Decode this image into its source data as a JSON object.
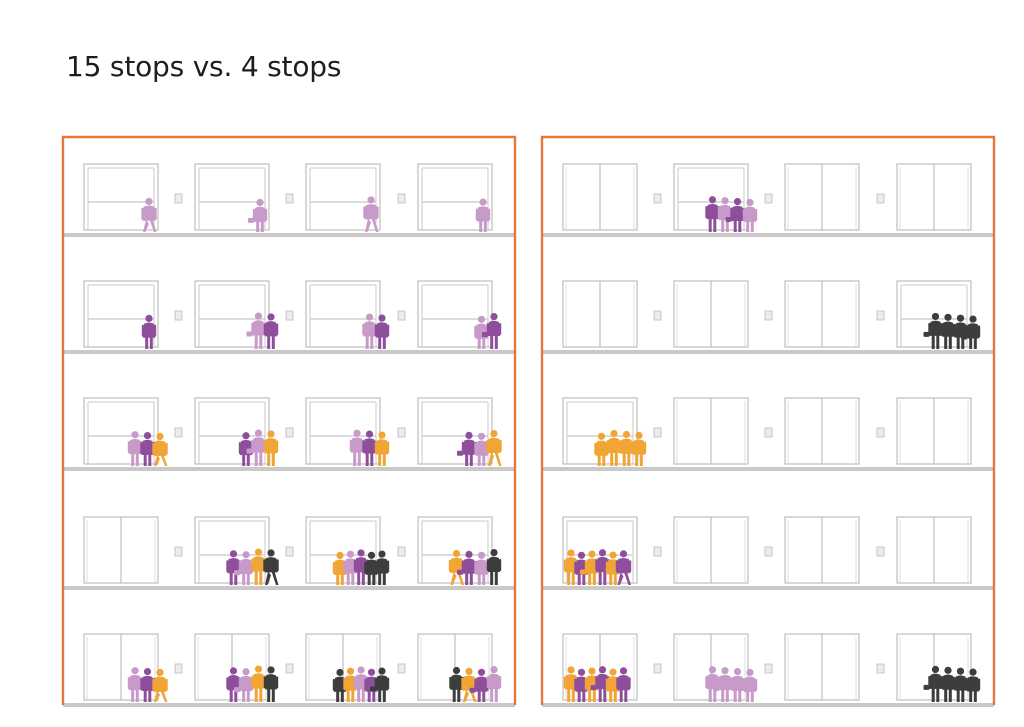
{
  "title": "15 stops vs. 4 stops",
  "colors": {
    "frame": "#e4773a",
    "floor": "#c9c9c9",
    "door": "#bdbdbd",
    "panel": "#c8c8c8",
    "purple_dark": "#8e4e9c",
    "purple_light": "#c89ac9",
    "orange": "#f0a534",
    "gray_dark": "#3d3d3d"
  },
  "buildings": [
    {
      "floors": [
        {
          "elevators": [
            {
              "door_style": "open",
              "people": [
                {
                  "color": "purple_light",
                  "pose": "walk"
                }
              ]
            },
            {
              "door_style": "open",
              "people": [
                {
                  "color": "purple_light",
                  "pose": "bag"
                }
              ]
            },
            {
              "door_style": "open",
              "people": [
                {
                  "color": "purple_light",
                  "pose": "walk"
                }
              ]
            },
            {
              "door_style": "open",
              "people": [
                {
                  "color": "purple_light",
                  "pose": "stand"
                }
              ]
            }
          ]
        },
        {
          "elevators": [
            {
              "door_style": "open",
              "people": [
                {
                  "color": "purple_dark",
                  "pose": "stand"
                }
              ]
            },
            {
              "door_style": "open",
              "people": [
                {
                  "color": "purple_light",
                  "pose": "bag"
                },
                {
                  "color": "purple_dark",
                  "pose": "stand"
                }
              ]
            },
            {
              "door_style": "open",
              "people": [
                {
                  "color": "purple_light",
                  "pose": "stand"
                },
                {
                  "color": "purple_dark",
                  "pose": "stand"
                }
              ]
            },
            {
              "door_style": "open",
              "people": [
                {
                  "color": "purple_light",
                  "pose": "stand"
                },
                {
                  "color": "purple_dark",
                  "pose": "bag"
                }
              ]
            }
          ]
        },
        {
          "elevators": [
            {
              "door_style": "open",
              "people": [
                {
                  "color": "purple_light",
                  "pose": "stand"
                },
                {
                  "color": "purple_dark",
                  "pose": "stand"
                },
                {
                  "color": "orange",
                  "pose": "walk"
                }
              ]
            },
            {
              "door_style": "open",
              "people": [
                {
                  "color": "purple_dark",
                  "pose": "stand"
                },
                {
                  "color": "purple_light",
                  "pose": "bag"
                },
                {
                  "color": "orange",
                  "pose": "stand"
                }
              ]
            },
            {
              "door_style": "open",
              "people": [
                {
                  "color": "purple_light",
                  "pose": "stand"
                },
                {
                  "color": "purple_dark",
                  "pose": "stand"
                },
                {
                  "color": "orange",
                  "pose": "stand"
                }
              ]
            },
            {
              "door_style": "open",
              "people": [
                {
                  "color": "purple_dark",
                  "pose": "bag"
                },
                {
                  "color": "purple_light",
                  "pose": "stand"
                },
                {
                  "color": "orange",
                  "pose": "walk"
                }
              ]
            }
          ]
        },
        {
          "elevators": [
            {
              "door_style": "closed",
              "people": []
            },
            {
              "door_style": "open",
              "people": [
                {
                  "color": "purple_dark",
                  "pose": "stand"
                },
                {
                  "color": "purple_light",
                  "pose": "bag"
                },
                {
                  "color": "orange",
                  "pose": "stand"
                },
                {
                  "color": "gray_dark",
                  "pose": "walk"
                }
              ]
            },
            {
              "door_style": "open",
              "people": [
                {
                  "color": "orange",
                  "pose": "stand"
                },
                {
                  "color": "purple_light",
                  "pose": "stand"
                },
                {
                  "color": "purple_dark",
                  "pose": "stand"
                },
                {
                  "color": "gray_dark",
                  "pose": "stand"
                },
                {
                  "color": "gray_dark",
                  "pose": "bag"
                }
              ]
            },
            {
              "door_style": "open",
              "people": [
                {
                  "color": "orange",
                  "pose": "walk"
                },
                {
                  "color": "purple_dark",
                  "pose": "bag"
                },
                {
                  "color": "purple_light",
                  "pose": "stand"
                },
                {
                  "color": "gray_dark",
                  "pose": "stand"
                }
              ]
            }
          ]
        },
        {
          "elevators": [
            {
              "door_style": "closed",
              "people": [
                {
                  "color": "purple_light",
                  "pose": "stand"
                },
                {
                  "color": "purple_dark",
                  "pose": "stand"
                },
                {
                  "color": "orange",
                  "pose": "walk"
                }
              ]
            },
            {
              "door_style": "closed",
              "people": [
                {
                  "color": "purple_dark",
                  "pose": "stand"
                },
                {
                  "color": "purple_light",
                  "pose": "bag"
                },
                {
                  "color": "orange",
                  "pose": "stand"
                },
                {
                  "color": "gray_dark",
                  "pose": "stand"
                }
              ]
            },
            {
              "door_style": "closed",
              "people": [
                {
                  "color": "gray_dark",
                  "pose": "stand"
                },
                {
                  "color": "orange",
                  "pose": "stand"
                },
                {
                  "color": "purple_light",
                  "pose": "stand"
                },
                {
                  "color": "purple_dark",
                  "pose": "stand"
                },
                {
                  "color": "gray_dark",
                  "pose": "bag"
                }
              ]
            },
            {
              "door_style": "closed",
              "people": [
                {
                  "color": "gray_dark",
                  "pose": "stand"
                },
                {
                  "color": "orange",
                  "pose": "walk"
                },
                {
                  "color": "purple_dark",
                  "pose": "bag"
                },
                {
                  "color": "purple_light",
                  "pose": "stand"
                }
              ]
            }
          ]
        }
      ]
    },
    {
      "floors": [
        {
          "elevators": [
            {
              "door_style": "closed",
              "people": []
            },
            {
              "door_style": "open",
              "people": [
                {
                  "color": "purple_dark",
                  "pose": "stand"
                },
                {
                  "color": "purple_light",
                  "pose": "stand"
                },
                {
                  "color": "purple_dark",
                  "pose": "bag"
                },
                {
                  "color": "purple_light",
                  "pose": "stand"
                }
              ]
            },
            {
              "door_style": "closed",
              "people": []
            },
            {
              "door_style": "closed",
              "people": []
            }
          ]
        },
        {
          "elevators": [
            {
              "door_style": "closed",
              "people": []
            },
            {
              "door_style": "closed",
              "people": []
            },
            {
              "door_style": "closed",
              "people": []
            },
            {
              "door_style": "open",
              "people": [
                {
                  "color": "gray_dark",
                  "pose": "bag"
                },
                {
                  "color": "gray_dark",
                  "pose": "stand"
                },
                {
                  "color": "gray_dark",
                  "pose": "stand"
                },
                {
                  "color": "gray_dark",
                  "pose": "bag"
                }
              ]
            }
          ]
        },
        {
          "elevators": [
            {
              "door_style": "open",
              "people": [
                {
                  "color": "orange",
                  "pose": "stand"
                },
                {
                  "color": "orange",
                  "pose": "stand"
                },
                {
                  "color": "orange",
                  "pose": "stand"
                },
                {
                  "color": "orange",
                  "pose": "stand"
                }
              ]
            },
            {
              "door_style": "closed",
              "people": []
            },
            {
              "door_style": "closed",
              "people": []
            },
            {
              "door_style": "closed",
              "people": []
            }
          ]
        },
        {
          "elevators": [
            {
              "door_style": "open",
              "people": [
                {
                  "color": "orange",
                  "pose": "stand"
                },
                {
                  "color": "purple_dark",
                  "pose": "stand"
                },
                {
                  "color": "orange",
                  "pose": "bag"
                },
                {
                  "color": "purple_dark",
                  "pose": "stand"
                },
                {
                  "color": "orange",
                  "pose": "stand"
                },
                {
                  "color": "purple_dark",
                  "pose": "walk"
                }
              ]
            },
            {
              "door_style": "closed",
              "people": []
            },
            {
              "door_style": "closed",
              "people": []
            },
            {
              "door_style": "closed",
              "people": []
            }
          ]
        },
        {
          "elevators": [
            {
              "door_style": "closed",
              "people": [
                {
                  "color": "orange",
                  "pose": "stand"
                },
                {
                  "color": "purple_dark",
                  "pose": "stand"
                },
                {
                  "color": "orange",
                  "pose": "stand"
                },
                {
                  "color": "purple_dark",
                  "pose": "bag"
                },
                {
                  "color": "orange",
                  "pose": "stand"
                },
                {
                  "color": "purple_dark",
                  "pose": "stand"
                }
              ]
            },
            {
              "door_style": "closed",
              "people": [
                {
                  "color": "purple_light",
                  "pose": "stand"
                },
                {
                  "color": "purple_light",
                  "pose": "bag"
                },
                {
                  "color": "purple_light",
                  "pose": "stand"
                },
                {
                  "color": "purple_light",
                  "pose": "stand"
                }
              ]
            },
            {
              "door_style": "closed",
              "people": []
            },
            {
              "door_style": "closed",
              "people": [
                {
                  "color": "gray_dark",
                  "pose": "bag"
                },
                {
                  "color": "gray_dark",
                  "pose": "stand"
                },
                {
                  "color": "gray_dark",
                  "pose": "stand"
                },
                {
                  "color": "gray_dark",
                  "pose": "stand"
                }
              ]
            }
          ]
        }
      ]
    }
  ]
}
